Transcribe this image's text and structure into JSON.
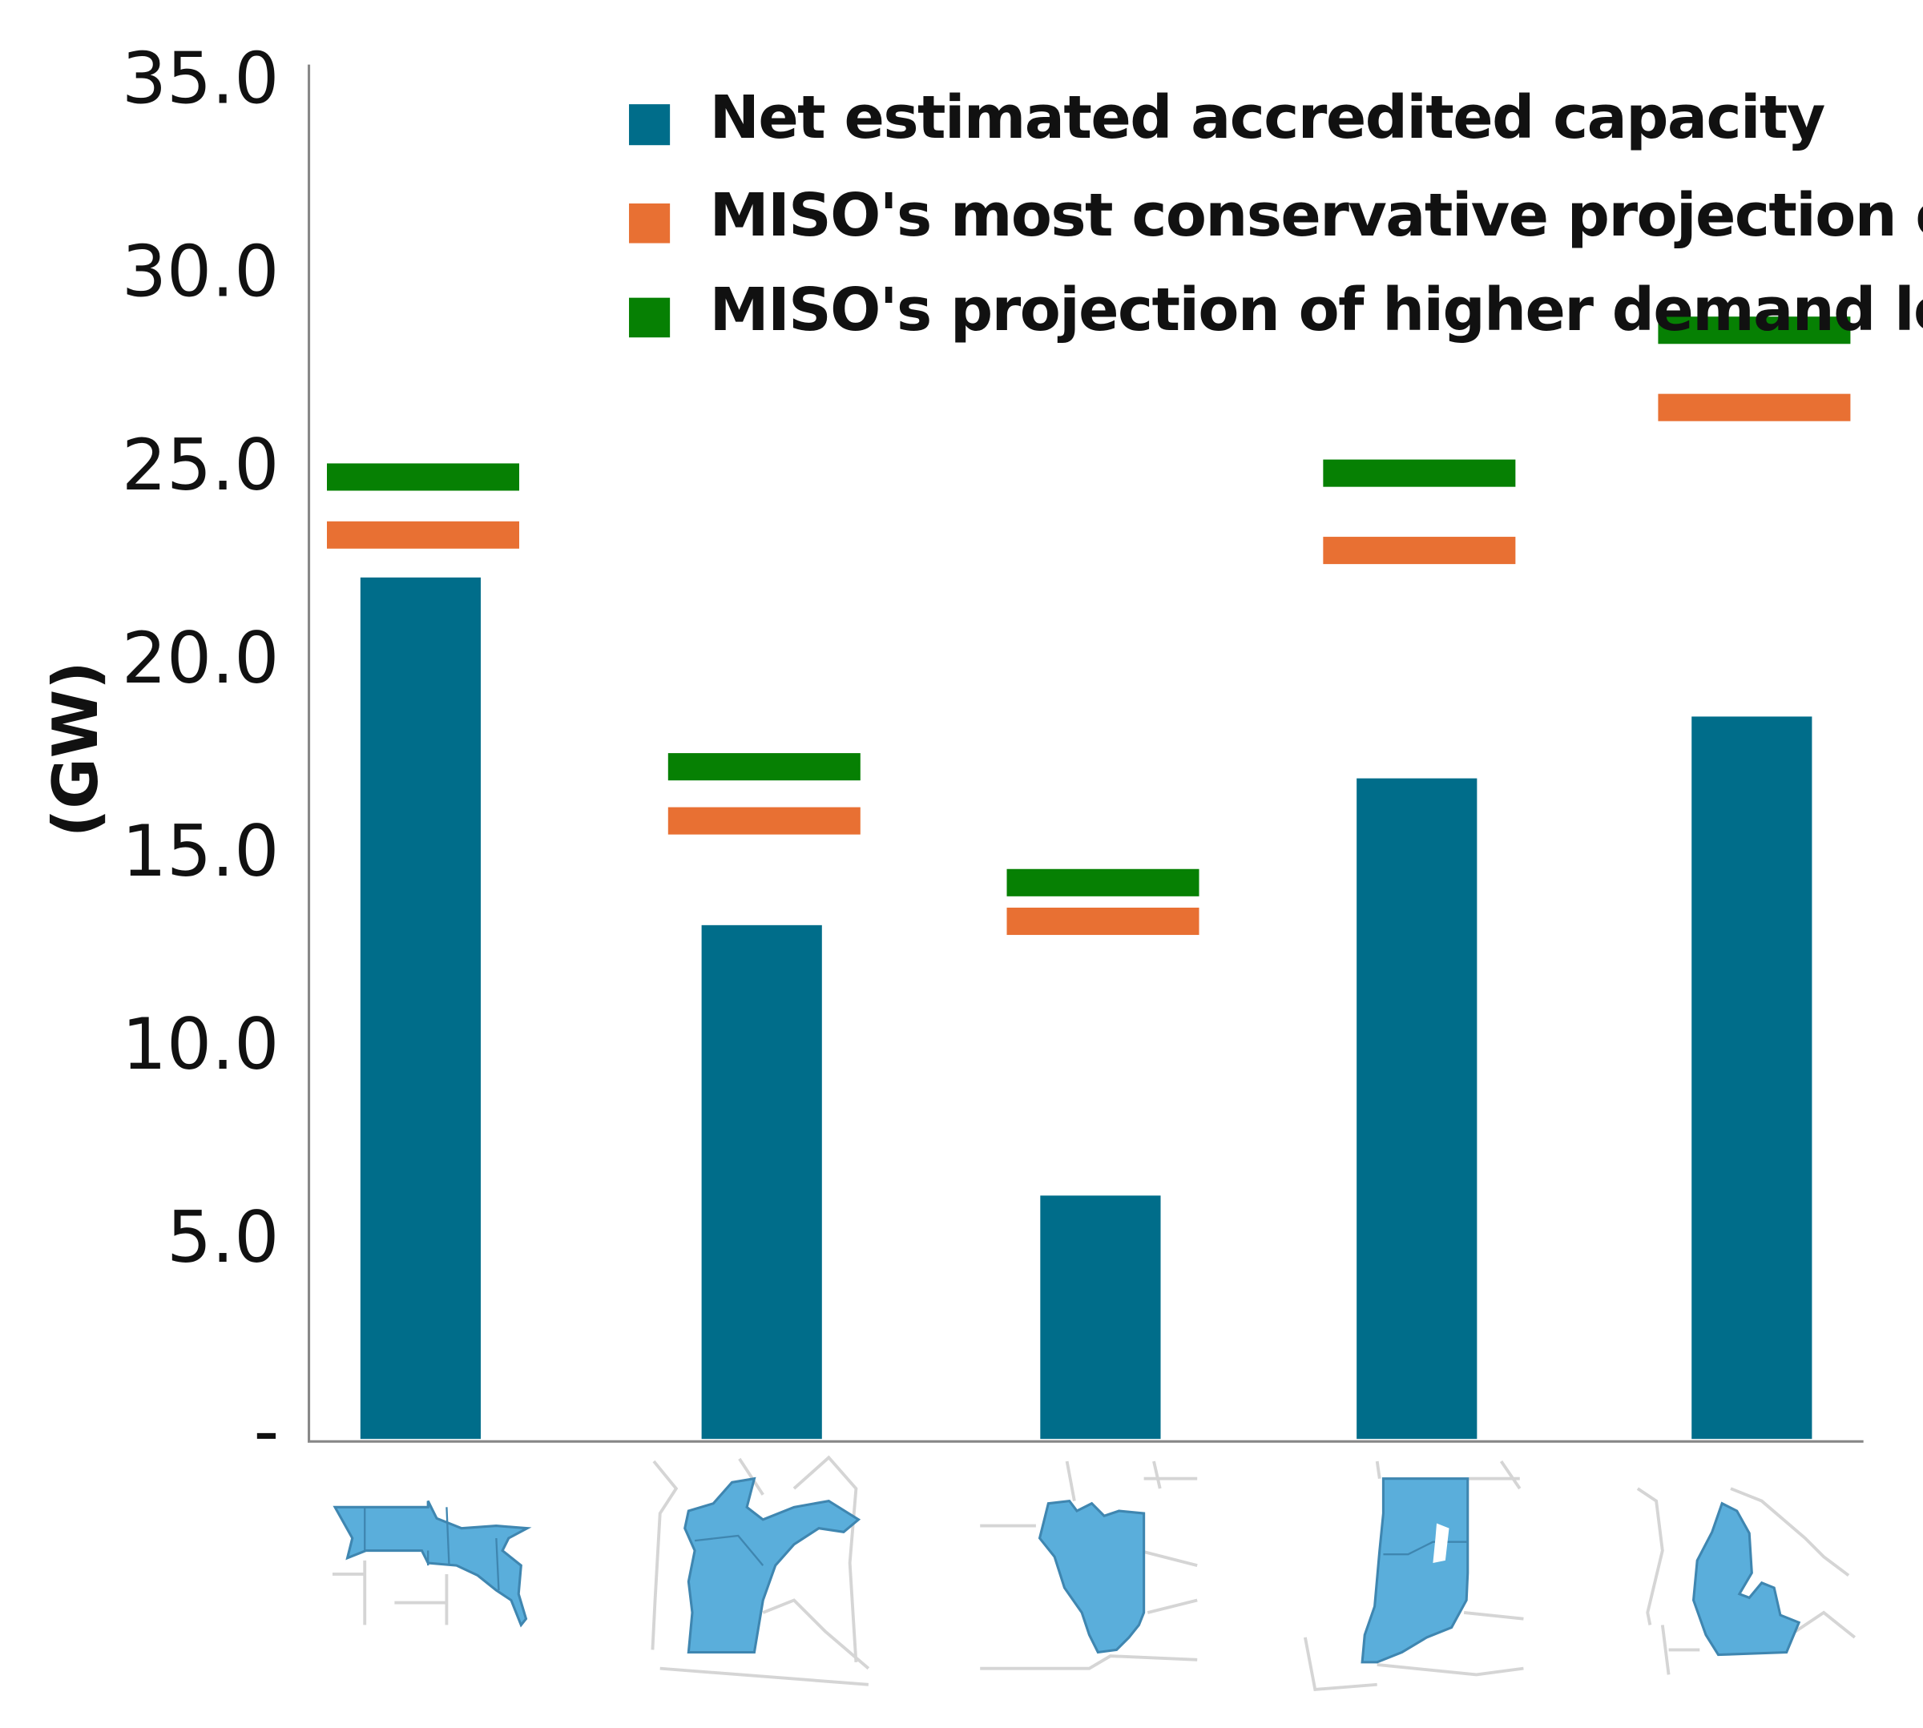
{
  "chart_data": {
    "type": "bar",
    "title": "",
    "xlabel": "",
    "ylabel": "(GW)",
    "ylim": [
      0,
      35
    ],
    "yticks": [
      0,
      5,
      10,
      15,
      20,
      25,
      30,
      35
    ],
    "ytick_labels": [
      "-",
      "5.0",
      "10.0",
      "15.0",
      "20.0",
      "25.0",
      "30.0",
      "35.0"
    ],
    "grid": false,
    "legend_position": "top-center",
    "categories": [
      "Minnesota/Dakotas region",
      "Wisconsin/Upper Michigan",
      "Illinois",
      "Indiana",
      "Michigan"
    ],
    "category_icons": [
      "map-minnesota-dakotas-icon",
      "map-wisconsin-upper-michigan-icon",
      "map-illinois-icon",
      "map-indiana-icon",
      "map-lower-michigan-icon"
    ],
    "series": [
      {
        "name": "Net estimated accredited capacity",
        "mark": "bar",
        "color": "#006d8a",
        "values": [
          22.3,
          13.3,
          6.3,
          17.1,
          18.7
        ]
      },
      {
        "name": "MISO's most conservative projection of demand load",
        "mark": "dash",
        "color": "#e87033",
        "values": [
          23.4,
          16.0,
          13.4,
          23.0,
          26.7
        ]
      },
      {
        "name": "MISO's projection of higher demand load",
        "mark": "dash",
        "color": "#068003",
        "values": [
          24.9,
          17.4,
          14.4,
          25.0,
          28.7
        ]
      }
    ]
  }
}
